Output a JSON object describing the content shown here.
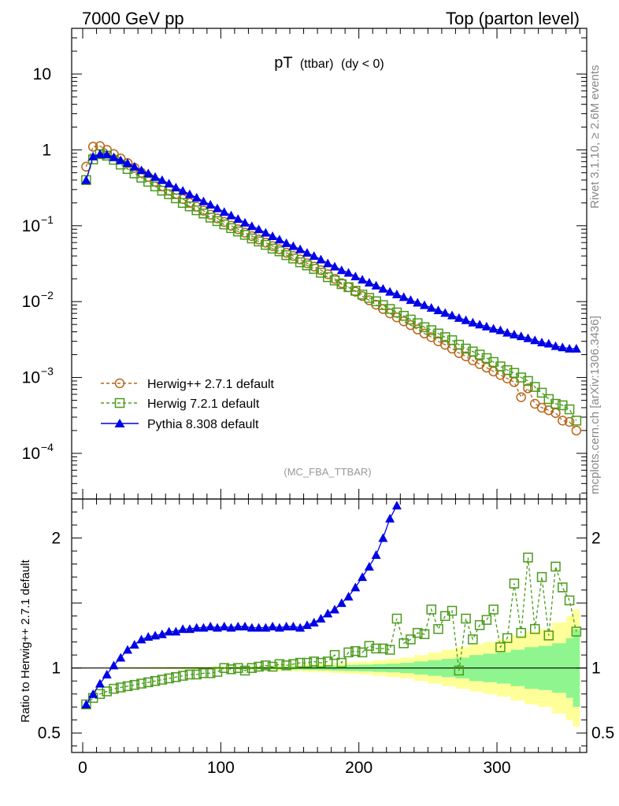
{
  "header": {
    "left": "7000 GeV pp",
    "right": "Top (parton level)"
  },
  "side_labels": {
    "rivet": "Rivet 3.1.10, ≥ 2.6M events",
    "mcplots": "mcplots.cern.ch [arXiv:1306.3436]"
  },
  "colors": {
    "herwig_pp": "#b8651b",
    "herwig7": "#4a9b1b",
    "pythia": "#0000e6",
    "band_inner": "#8ff58f",
    "band_outer": "#ffff99"
  },
  "chart_data": [
    {
      "type": "scatter",
      "title": "pT",
      "title_sub": "(ttbar)",
      "title_cond": "(dy < 0)",
      "watermark": "(MC_FBA_TTBAR)",
      "yscale": "log",
      "ylim": [
        2.5e-05,
        40
      ],
      "xlim": [
        -8,
        365
      ],
      "ytick_labels": {
        "10": "10",
        "1": "1",
        "0.1": "10",
        "0.01": "10",
        "0.001": "10",
        "0.0001": "10"
      },
      "ytick_exponents": {
        "0.1": "−1",
        "0.01": "−2",
        "0.001": "−3",
        "0.0001": "−4"
      },
      "legend_position": "bottom-left",
      "series": [
        {
          "name": "Herwig++ 2.7.1 default",
          "marker": "open-circle",
          "line": "dashed",
          "x": [
            2.5,
            7.5,
            12.5,
            17.5,
            22.5,
            27.5,
            32.5,
            37.5,
            42.5,
            47.5,
            52.5,
            57.5,
            62.5,
            67.5,
            72.5,
            77.5,
            82.5,
            87.5,
            92.5,
            97.5,
            102.5,
            107.5,
            112.5,
            117.5,
            122.5,
            127.5,
            132.5,
            137.5,
            142.5,
            147.5,
            152.5,
            157.5,
            162.5,
            167.5,
            172.5,
            177.5,
            182.5,
            187.5,
            192.5,
            197.5,
            202.5,
            207.5,
            212.5,
            217.5,
            222.5,
            227.5,
            232.5,
            237.5,
            242.5,
            247.5,
            252.5,
            257.5,
            262.5,
            267.5,
            272.5,
            277.5,
            282.5,
            287.5,
            292.5,
            297.5,
            302.5,
            307.5,
            312.5,
            317.5,
            322.5,
            327.5,
            332.5,
            337.5,
            342.5,
            347.5,
            352.5,
            357.5
          ],
          "y": [
            0.6,
            1.1,
            1.12,
            1.0,
            0.88,
            0.77,
            0.67,
            0.58,
            0.5,
            0.44,
            0.38,
            0.33,
            0.29,
            0.26,
            0.225,
            0.2,
            0.178,
            0.158,
            0.14,
            0.125,
            0.112,
            0.1,
            0.09,
            0.081,
            0.073,
            0.066,
            0.06,
            0.054,
            0.049,
            0.044,
            0.04,
            0.036,
            0.032,
            0.029,
            0.026,
            0.023,
            0.02,
            0.0175,
            0.0155,
            0.0135,
            0.0118,
            0.0104,
            0.0091,
            0.008,
            0.007,
            0.0062,
            0.0055,
            0.0049,
            0.0043,
            0.0038,
            0.0034,
            0.003,
            0.0027,
            0.0024,
            0.0021,
            0.0019,
            0.00168,
            0.0015,
            0.00135,
            0.0012,
            0.00108,
            0.00097,
            0.00087,
            0.00055,
            0.00072,
            0.00045,
            0.0004,
            0.00037,
            0.00034,
            0.00027,
            0.00026,
            0.0002
          ]
        },
        {
          "name": "Herwig 7.2.1 default",
          "marker": "open-square",
          "line": "dashed",
          "x": [
            2.5,
            7.5,
            12.5,
            17.5,
            22.5,
            27.5,
            32.5,
            37.5,
            42.5,
            47.5,
            52.5,
            57.5,
            62.5,
            67.5,
            72.5,
            77.5,
            82.5,
            87.5,
            92.5,
            97.5,
            102.5,
            107.5,
            112.5,
            117.5,
            122.5,
            127.5,
            132.5,
            137.5,
            142.5,
            147.5,
            152.5,
            157.5,
            162.5,
            167.5,
            172.5,
            177.5,
            182.5,
            187.5,
            192.5,
            197.5,
            202.5,
            207.5,
            212.5,
            217.5,
            222.5,
            227.5,
            232.5,
            237.5,
            242.5,
            247.5,
            252.5,
            257.5,
            262.5,
            267.5,
            272.5,
            277.5,
            282.5,
            287.5,
            292.5,
            297.5,
            302.5,
            307.5,
            312.5,
            317.5,
            322.5,
            327.5,
            332.5,
            337.5,
            342.5,
            347.5,
            352.5,
            357.5
          ],
          "y": [
            0.4,
            0.75,
            0.88,
            0.84,
            0.74,
            0.64,
            0.56,
            0.49,
            0.43,
            0.38,
            0.33,
            0.29,
            0.26,
            0.23,
            0.2,
            0.18,
            0.16,
            0.145,
            0.128,
            0.115,
            0.104,
            0.093,
            0.084,
            0.076,
            0.068,
            0.062,
            0.056,
            0.05,
            0.046,
            0.041,
            0.037,
            0.033,
            0.03,
            0.027,
            0.024,
            0.021,
            0.019,
            0.017,
            0.0155,
            0.0139,
            0.0124,
            0.0112,
            0.0101,
            0.009,
            0.008,
            0.0072,
            0.0065,
            0.0058,
            0.0052,
            0.0046,
            0.0042,
            0.0038,
            0.0034,
            0.0031,
            0.0027,
            0.0024,
            0.0022,
            0.002,
            0.0018,
            0.0016,
            0.0014,
            0.00125,
            0.00115,
            0.001,
            0.0009,
            0.00075,
            0.00063,
            0.00052,
            0.00045,
            0.00043,
            0.00038,
            0.00027
          ]
        },
        {
          "name": "Pythia 8.308 default",
          "marker": "filled-triangle",
          "line": "solid",
          "x": [
            2.5,
            7.5,
            12.5,
            17.5,
            22.5,
            27.5,
            32.5,
            37.5,
            42.5,
            47.5,
            52.5,
            57.5,
            62.5,
            67.5,
            72.5,
            77.5,
            82.5,
            87.5,
            92.5,
            97.5,
            102.5,
            107.5,
            112.5,
            117.5,
            122.5,
            127.5,
            132.5,
            137.5,
            142.5,
            147.5,
            152.5,
            157.5,
            162.5,
            167.5,
            172.5,
            177.5,
            182.5,
            187.5,
            192.5,
            197.5,
            202.5,
            207.5,
            212.5,
            217.5,
            222.5,
            227.5,
            232.5,
            237.5,
            242.5,
            247.5,
            252.5,
            257.5,
            262.5,
            267.5,
            272.5,
            277.5,
            282.5,
            287.5,
            292.5,
            297.5,
            302.5,
            307.5,
            312.5,
            317.5,
            322.5,
            327.5,
            332.5,
            337.5,
            342.5,
            347.5,
            352.5,
            357.5
          ],
          "y": [
            0.4,
            0.82,
            0.88,
            0.87,
            0.8,
            0.73,
            0.67,
            0.6,
            0.54,
            0.49,
            0.44,
            0.4,
            0.36,
            0.32,
            0.29,
            0.26,
            0.235,
            0.21,
            0.19,
            0.17,
            0.152,
            0.137,
            0.123,
            0.11,
            0.099,
            0.09,
            0.081,
            0.073,
            0.066,
            0.059,
            0.054,
            0.049,
            0.044,
            0.04,
            0.036,
            0.032,
            0.029,
            0.026,
            0.024,
            0.0215,
            0.0195,
            0.0178,
            0.0163,
            0.0148,
            0.0135,
            0.0125,
            0.0115,
            0.0105,
            0.0097,
            0.009,
            0.0083,
            0.0077,
            0.0071,
            0.0066,
            0.0061,
            0.0057,
            0.0053,
            0.005,
            0.0047,
            0.0044,
            0.0042,
            0.0039,
            0.0037,
            0.0035,
            0.0033,
            0.0031,
            0.0029,
            0.0028,
            0.0026,
            0.0025,
            0.0024,
            0.0024
          ]
        }
      ]
    },
    {
      "type": "line",
      "ylabel": "Ratio to Herwig++ 2.7.1 default",
      "ylim": [
        0.35,
        2.3
      ],
      "xlim": [
        -8,
        365
      ],
      "yticks": [
        0.5,
        1,
        2
      ],
      "ytick_labels": [
        "0.5",
        "1",
        "2"
      ],
      "xticks": [
        0,
        100,
        200,
        300
      ],
      "xtick_labels": [
        "0",
        "100",
        "200",
        "300"
      ],
      "reference": 1,
      "band_x": [
        0,
        10,
        20,
        30,
        40,
        50,
        60,
        70,
        80,
        90,
        100,
        110,
        120,
        130,
        140,
        150,
        160,
        170,
        180,
        190,
        200,
        210,
        220,
        230,
        240,
        250,
        260,
        270,
        280,
        290,
        300,
        310,
        320,
        330,
        340,
        350,
        355,
        360
      ],
      "band_inner": [
        0.002,
        0.002,
        0.003,
        0.003,
        0.004,
        0.004,
        0.005,
        0.005,
        0.006,
        0.006,
        0.007,
        0.008,
        0.009,
        0.01,
        0.011,
        0.013,
        0.015,
        0.017,
        0.02,
        0.023,
        0.026,
        0.03,
        0.034,
        0.04,
        0.05,
        0.06,
        0.07,
        0.08,
        0.1,
        0.11,
        0.12,
        0.14,
        0.16,
        0.17,
        0.19,
        0.23,
        0.3,
        0.3
      ],
      "band_outer": [
        0.004,
        0.004,
        0.005,
        0.006,
        0.007,
        0.008,
        0.009,
        0.01,
        0.011,
        0.012,
        0.013,
        0.015,
        0.017,
        0.02,
        0.022,
        0.025,
        0.03,
        0.035,
        0.04,
        0.045,
        0.05,
        0.06,
        0.07,
        0.08,
        0.1,
        0.12,
        0.14,
        0.16,
        0.18,
        0.2,
        0.22,
        0.25,
        0.28,
        0.3,
        0.35,
        0.4,
        0.45,
        0.45
      ],
      "series": [
        {
          "name": "Herwig 7.2.1 default",
          "x": [
            2.5,
            7.5,
            12.5,
            17.5,
            22.5,
            27.5,
            32.5,
            37.5,
            42.5,
            47.5,
            52.5,
            57.5,
            62.5,
            67.5,
            72.5,
            77.5,
            82.5,
            87.5,
            92.5,
            97.5,
            102.5,
            107.5,
            112.5,
            117.5,
            122.5,
            127.5,
            132.5,
            137.5,
            142.5,
            147.5,
            152.5,
            157.5,
            162.5,
            167.5,
            172.5,
            177.5,
            182.5,
            187.5,
            192.5,
            197.5,
            202.5,
            207.5,
            212.5,
            217.5,
            222.5,
            227.5,
            232.5,
            237.5,
            242.5,
            247.5,
            252.5,
            257.5,
            262.5,
            267.5,
            272.5,
            277.5,
            282.5,
            287.5,
            292.5,
            297.5,
            302.5,
            307.5,
            312.5,
            317.5,
            322.5,
            327.5,
            332.5,
            337.5,
            342.5,
            347.5,
            352.5,
            357.5
          ],
          "y": [
            0.72,
            0.77,
            0.8,
            0.82,
            0.84,
            0.85,
            0.86,
            0.87,
            0.88,
            0.89,
            0.9,
            0.91,
            0.92,
            0.93,
            0.94,
            0.95,
            0.95,
            0.96,
            0.96,
            0.97,
            1.0,
            0.99,
            1.0,
            0.98,
            1.0,
            1.01,
            1.02,
            1.01,
            1.03,
            1.02,
            1.03,
            1.04,
            1.04,
            1.05,
            1.04,
            1.05,
            1.1,
            1.04,
            1.12,
            1.13,
            1.12,
            1.17,
            1.15,
            1.15,
            1.14,
            1.38,
            1.19,
            1.22,
            1.27,
            1.26,
            1.45,
            1.3,
            1.4,
            1.44,
            0.98,
            1.38,
            1.22,
            1.33,
            1.37,
            1.45,
            1.16,
            1.23,
            1.65,
            1.27,
            1.85,
            1.3,
            1.7,
            1.25,
            1.78,
            1.62,
            1.52,
            1.28
          ]
        },
        {
          "name": "Pythia 8.308 default",
          "x": [
            2.5,
            7.5,
            12.5,
            17.5,
            22.5,
            27.5,
            32.5,
            37.5,
            42.5,
            47.5,
            52.5,
            57.5,
            62.5,
            67.5,
            72.5,
            77.5,
            82.5,
            87.5,
            92.5,
            97.5,
            102.5,
            107.5,
            112.5,
            117.5,
            122.5,
            127.5,
            132.5,
            137.5,
            142.5,
            147.5,
            152.5,
            157.5,
            162.5,
            167.5,
            172.5,
            177.5,
            182.5,
            187.5,
            192.5,
            197.5,
            202.5,
            207.5,
            212.5,
            217.5,
            222.5,
            227.5
          ],
          "y": [
            0.72,
            0.8,
            0.88,
            0.95,
            1.02,
            1.08,
            1.14,
            1.18,
            1.22,
            1.24,
            1.25,
            1.26,
            1.28,
            1.28,
            1.3,
            1.3,
            1.31,
            1.31,
            1.32,
            1.31,
            1.32,
            1.31,
            1.32,
            1.32,
            1.31,
            1.31,
            1.31,
            1.32,
            1.31,
            1.32,
            1.32,
            1.31,
            1.33,
            1.35,
            1.38,
            1.42,
            1.45,
            1.5,
            1.55,
            1.62,
            1.7,
            1.78,
            1.87,
            2.0,
            2.15,
            2.25
          ]
        }
      ]
    }
  ]
}
